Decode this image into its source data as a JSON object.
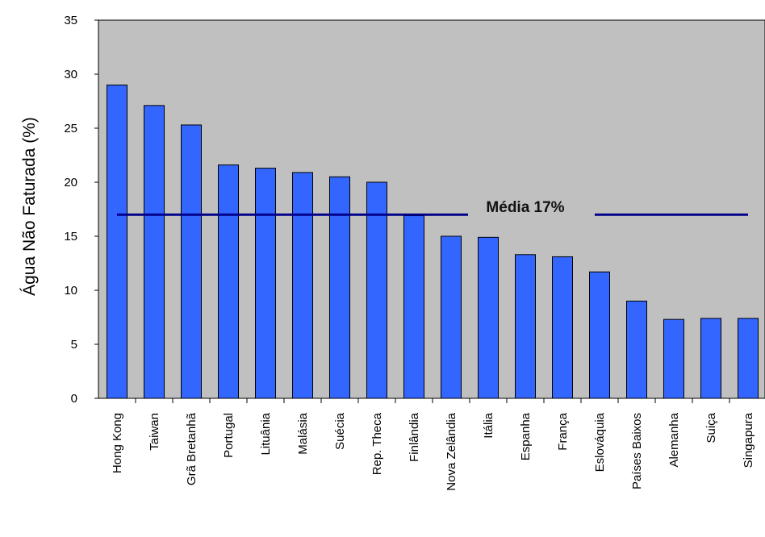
{
  "chart_data": {
    "type": "bar",
    "title": "",
    "xlabel": "",
    "ylabel": "Água Não Faturada (%)",
    "ylim": [
      0,
      35
    ],
    "yticks": [
      0,
      5,
      10,
      15,
      20,
      25,
      30,
      35
    ],
    "grid": false,
    "categories": [
      "Hong Kong",
      "Taiwan",
      "Grã Bretanhã",
      "Portugal",
      "Lituânia",
      "Malásia",
      "Suécia",
      "Rep. Theca",
      "Finlândia",
      "Nova Zelândia",
      "Itália",
      "Espanha",
      "França",
      "Eslováquia",
      "Países Baixos",
      "Alemanha",
      "Suiça",
      "Singapura"
    ],
    "values": [
      29.0,
      27.1,
      25.3,
      21.6,
      21.3,
      20.9,
      20.5,
      20.0,
      16.9,
      15.0,
      14.9,
      13.3,
      13.1,
      11.7,
      9.0,
      7.3,
      7.4,
      7.4
    ],
    "reference_line": {
      "value": 17,
      "label": "Média 17%",
      "color": "#00008b"
    },
    "colors": {
      "bar": "#3366ff",
      "bar_edge": "#000000",
      "plot_bg": "#c0c0c0"
    }
  }
}
